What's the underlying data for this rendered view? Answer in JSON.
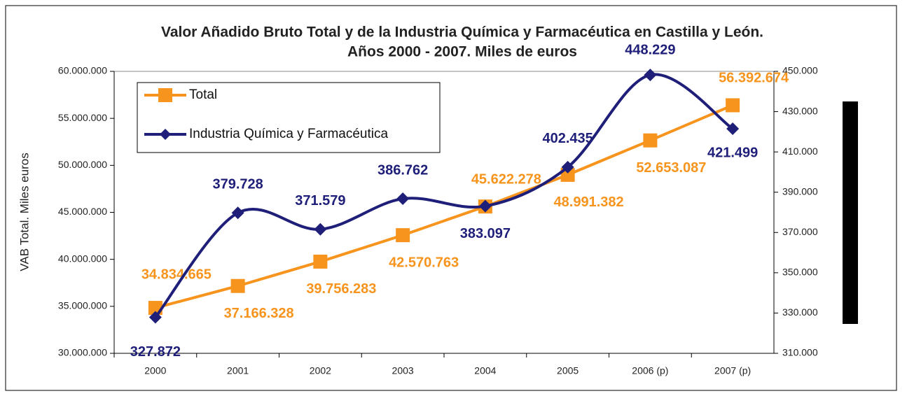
{
  "chart_data": {
    "type": "line",
    "title": "Valor Añadido Bruto Total y de la Industria Química y Farmacéutica en Castilla y León.",
    "subtitle": "Años 2000 - 2007. Miles de euros",
    "ylabel": "VAB Total. Miles euros",
    "categories": [
      "2000",
      "2001",
      "2002",
      "2003",
      "2004",
      "2005",
      "2006 (p)",
      "2007 (p)"
    ],
    "series": [
      {
        "name": "Total",
        "color": "#f7941d",
        "marker": "square",
        "values": [
          34834665,
          37166328,
          39756283,
          42570763,
          45622278,
          48991382,
          52653087,
          56392674
        ],
        "value_labels": [
          "34.834.665",
          "37.166.328",
          "39.756.283",
          "42.570.763",
          "45.622.278",
          "48.991.382",
          "52.653.087",
          "56.392.674"
        ]
      },
      {
        "name": "Industria Química y Farmacéutica",
        "color": "#1f1f7a",
        "marker": "diamond",
        "axis": "y2",
        "smooth": true,
        "values": [
          327872,
          379728,
          371579,
          386762,
          383097,
          402435,
          448229,
          421499
        ],
        "value_labels": [
          "327.872",
          "379.728",
          "371.579",
          "386.762",
          "383.097",
          "402.435",
          "448.229",
          "421.499"
        ]
      }
    ],
    "ylim": [
      30000000,
      60000000
    ],
    "yticks": [
      {
        "value": 30000000,
        "label": "30.000.000"
      },
      {
        "value": 35000000,
        "label": "35.000.000"
      },
      {
        "value": 40000000,
        "label": "40.000.000"
      },
      {
        "value": 45000000,
        "label": "45.000.000"
      },
      {
        "value": 50000000,
        "label": "50.000.000"
      },
      {
        "value": 55000000,
        "label": "55.000.000"
      },
      {
        "value": 60000000,
        "label": "60.000.000"
      }
    ],
    "y2lim": [
      310000,
      450000
    ],
    "y2ticks": [
      {
        "value": 310000,
        "label": "310.000"
      },
      {
        "value": 330000,
        "label": "330.000"
      },
      {
        "value": 350000,
        "label": "350.000"
      },
      {
        "value": 370000,
        "label": "370.000"
      },
      {
        "value": 390000,
        "label": "390.000"
      },
      {
        "value": 410000,
        "label": "410.000"
      },
      {
        "value": 430000,
        "label": "430.000"
      },
      {
        "value": 450000,
        "label": "450.000"
      }
    ],
    "legend": "upper left"
  }
}
